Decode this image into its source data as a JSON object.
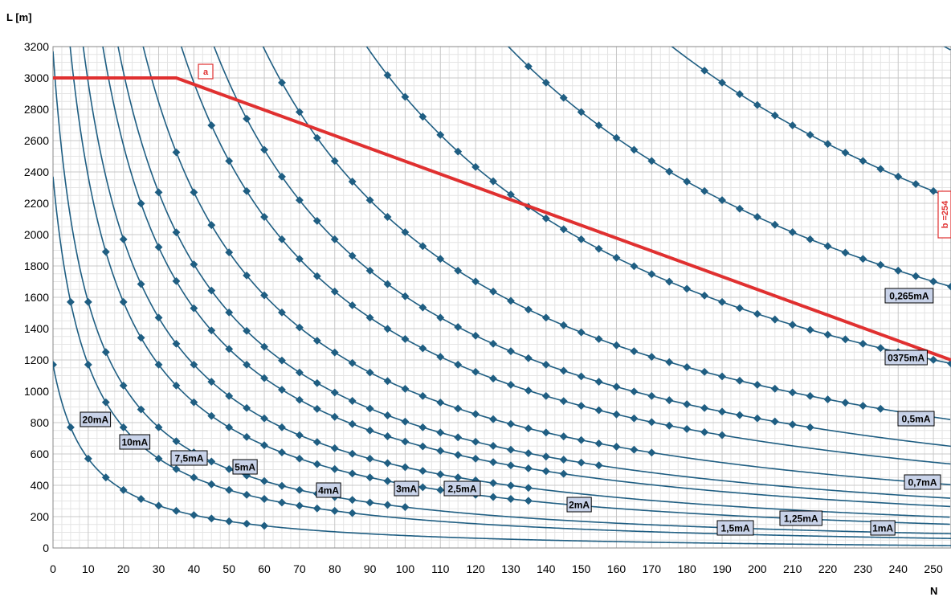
{
  "chart_data": {
    "type": "line",
    "title": "",
    "ylabel": "L [m]",
    "xlabel": "N",
    "xlim": [
      0,
      255
    ],
    "ylim": [
      0,
      3200
    ],
    "xticks": [
      0,
      10,
      20,
      30,
      40,
      50,
      60,
      70,
      80,
      90,
      100,
      110,
      120,
      130,
      140,
      150,
      160,
      170,
      180,
      190,
      200,
      210,
      220,
      230,
      240,
      250
    ],
    "yticks": [
      0,
      200,
      400,
      600,
      800,
      1000,
      1200,
      1400,
      1600,
      1800,
      2000,
      2200,
      2400,
      2600,
      2800,
      3000,
      3200
    ],
    "grid": true,
    "colors": {
      "series": "#1f5e82",
      "limit": "#e03030",
      "label_fill": "#c8d2e8",
      "grid": "#d6d6d6"
    },
    "series": [
      {
        "name": "20mA",
        "a": 12000,
        "x": [
          0,
          5,
          10,
          15,
          20,
          25,
          30,
          35,
          40,
          45,
          50,
          55,
          60
        ]
      },
      {
        "name": "10mA",
        "a": 24000,
        "x": [
          5,
          10,
          15,
          20,
          25,
          30,
          35,
          40,
          45,
          50,
          55,
          60,
          65,
          70,
          75,
          80,
          85
        ]
      },
      {
        "name": "7,5mA",
        "a": 32000,
        "x": [
          10,
          15,
          20,
          25,
          30,
          35,
          40,
          45,
          50,
          55,
          60,
          65,
          70,
          75,
          80,
          85,
          90,
          95,
          100
        ]
      },
      {
        "name": "5mA",
        "a": 48000,
        "x": [
          15,
          20,
          25,
          30,
          35,
          40,
          45,
          50,
          55,
          60,
          65,
          70,
          75,
          80,
          85,
          90,
          95,
          100,
          105,
          110,
          115,
          120,
          125,
          130,
          135
        ]
      },
      {
        "name": "4mA",
        "a": 60000,
        "x": [
          20,
          25,
          30,
          35,
          40,
          45,
          50,
          55,
          60,
          65,
          70,
          75,
          80,
          85,
          90,
          95,
          100,
          105,
          110,
          115,
          120,
          125,
          130,
          135
        ]
      },
      {
        "name": "3mA",
        "a": 78000,
        "x": [
          25,
          30,
          35,
          40,
          45,
          50,
          55,
          60,
          65,
          70,
          75,
          80,
          85,
          90,
          95,
          100,
          105,
          110,
          115,
          120,
          125,
          130,
          135,
          140,
          145
        ]
      },
      {
        "name": "2,5mA",
        "a": 92000,
        "x": [
          30,
          35,
          40,
          45,
          50,
          55,
          60,
          65,
          70,
          75,
          80,
          85,
          90,
          95,
          100,
          105,
          110,
          115,
          120,
          125,
          130,
          135,
          140,
          145,
          150,
          155
        ]
      },
      {
        "name": "2mA",
        "a": 115000,
        "x": [
          35,
          40,
          45,
          50,
          55,
          60,
          65,
          70,
          75,
          80,
          85,
          90,
          95,
          100,
          105,
          110,
          115,
          120,
          125,
          130,
          135,
          140,
          145,
          150,
          155,
          160,
          165,
          170
        ]
      },
      {
        "name": "1,5mA",
        "a": 150000,
        "x": [
          45,
          50,
          55,
          60,
          65,
          70,
          75,
          80,
          85,
          90,
          95,
          100,
          105,
          110,
          115,
          120,
          125,
          130,
          135,
          140,
          145,
          150,
          155,
          160,
          165,
          170,
          175,
          180,
          185,
          190
        ]
      },
      {
        "name": "1,25mA",
        "a": 180000,
        "x": [
          55,
          60,
          65,
          70,
          75,
          80,
          85,
          90,
          95,
          100,
          105,
          110,
          115,
          120,
          125,
          130,
          135,
          140,
          145,
          150,
          155,
          160,
          165,
          170,
          175,
          180,
          185,
          190,
          195,
          200,
          205,
          210,
          215
        ]
      },
      {
        "name": "1mA",
        "a": 225000,
        "x": [
          65,
          70,
          75,
          80,
          85,
          90,
          95,
          100,
          105,
          110,
          115,
          120,
          125,
          130,
          135,
          140,
          145,
          150,
          155,
          160,
          165,
          170,
          175,
          180,
          185,
          190,
          195,
          200,
          205,
          210,
          215,
          220,
          225,
          230,
          235
        ]
      },
      {
        "name": "0,7mA",
        "a": 320000,
        "x": [
          95,
          100,
          105,
          110,
          115,
          120,
          125,
          130,
          135,
          140,
          145,
          150,
          155,
          160,
          165,
          170,
          175,
          180,
          185,
          190,
          195,
          200,
          205,
          210,
          215,
          220,
          225,
          230,
          235,
          240,
          245,
          250,
          255
        ]
      },
      {
        "name": "0,5mA",
        "a": 450000,
        "x": [
          135,
          140,
          145,
          150,
          155,
          160,
          165,
          170,
          175,
          180,
          185,
          190,
          195,
          200,
          205,
          210,
          215,
          220,
          225,
          230,
          235,
          240,
          245,
          250,
          255
        ]
      },
      {
        "name": "0375mA",
        "a": 600000,
        "x": [
          185,
          190,
          195,
          200,
          205,
          210,
          215,
          220,
          225,
          230,
          235,
          240,
          245,
          250,
          255
        ]
      },
      {
        "name": "0,265mA",
        "a": 850000,
        "x": []
      }
    ],
    "limit_line": {
      "x": [
        0,
        35,
        255
      ],
      "y": [
        3000,
        3000,
        1200
      ]
    },
    "annotations": {
      "a": "a",
      "b": "b =254"
    },
    "labels": [
      {
        "text": "20mA",
        "x": 0,
        "y": 810
      },
      {
        "text": "10mA",
        "x": 0,
        "y": 690
      },
      {
        "text": "7,5mA",
        "x": 0,
        "y": 590
      },
      {
        "text": "5mA",
        "x": 0,
        "y": 530
      },
      {
        "text": "4mA",
        "x": 0,
        "y": 390
      },
      {
        "text": "3mA",
        "x": 0,
        "y": 390
      },
      {
        "text": "2,5mA",
        "x": 0,
        "y": 390
      },
      {
        "text": "2mA",
        "x": 0,
        "y": 285
      },
      {
        "text": "1,5mA",
        "x": 0,
        "y": 130
      },
      {
        "text": "1,25mA",
        "x": 0,
        "y": 190
      },
      {
        "text": "1mA",
        "x": 0,
        "y": 130
      },
      {
        "text": "0,7mA",
        "x": 0,
        "y": 410
      },
      {
        "text": "0,5mA",
        "x": 0,
        "y": 830
      },
      {
        "text": "0375mA",
        "x": 0,
        "y": 1230
      },
      {
        "text": "0,265mA",
        "x": 0,
        "y": 1610
      }
    ]
  }
}
